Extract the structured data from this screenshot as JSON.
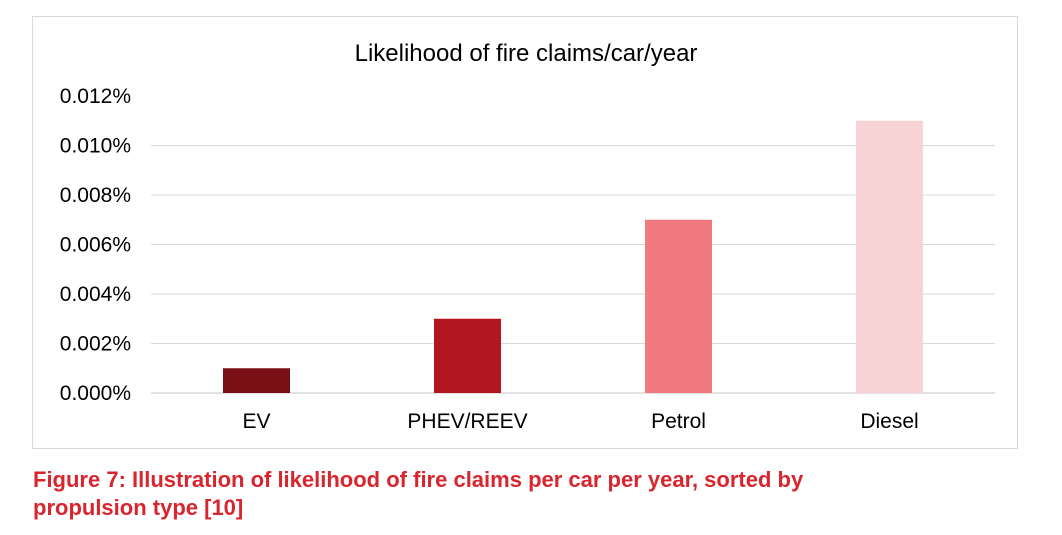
{
  "colors": {
    "bar_ev": "#7b1016",
    "bar_phev": "#b01520",
    "bar_petrol": "#f07a7f",
    "bar_diesel": "#f8d3d5",
    "gridline": "#d9d9d9",
    "caption": "#d9262e",
    "text": "#000000"
  },
  "chart_data": {
    "type": "bar",
    "title": "Likelihood of fire claims/car/year",
    "xlabel": "",
    "ylabel": "",
    "categories": [
      "EV",
      "PHEV/REEV",
      "Petrol",
      "Diesel"
    ],
    "values": [
      0.001,
      0.003,
      0.007,
      0.011
    ],
    "unit": "%",
    "ylim": [
      0,
      0.012
    ],
    "yticks": [
      0.0,
      0.002,
      0.004,
      0.006,
      0.008,
      0.01,
      0.012
    ],
    "ytick_labels": [
      "0.000%",
      "0.002%",
      "0.004%",
      "0.006%",
      "0.008%",
      "0.010%",
      "0.012%"
    ],
    "grid": true,
    "legend": "none",
    "bar_colors": [
      "#7b1016",
      "#b01520",
      "#f07a7f",
      "#f8d3d5"
    ]
  },
  "caption": {
    "line1": "Figure 7: Illustration of likelihood of fire claims per car per year, sorted by",
    "line2": "propulsion type [10]"
  }
}
